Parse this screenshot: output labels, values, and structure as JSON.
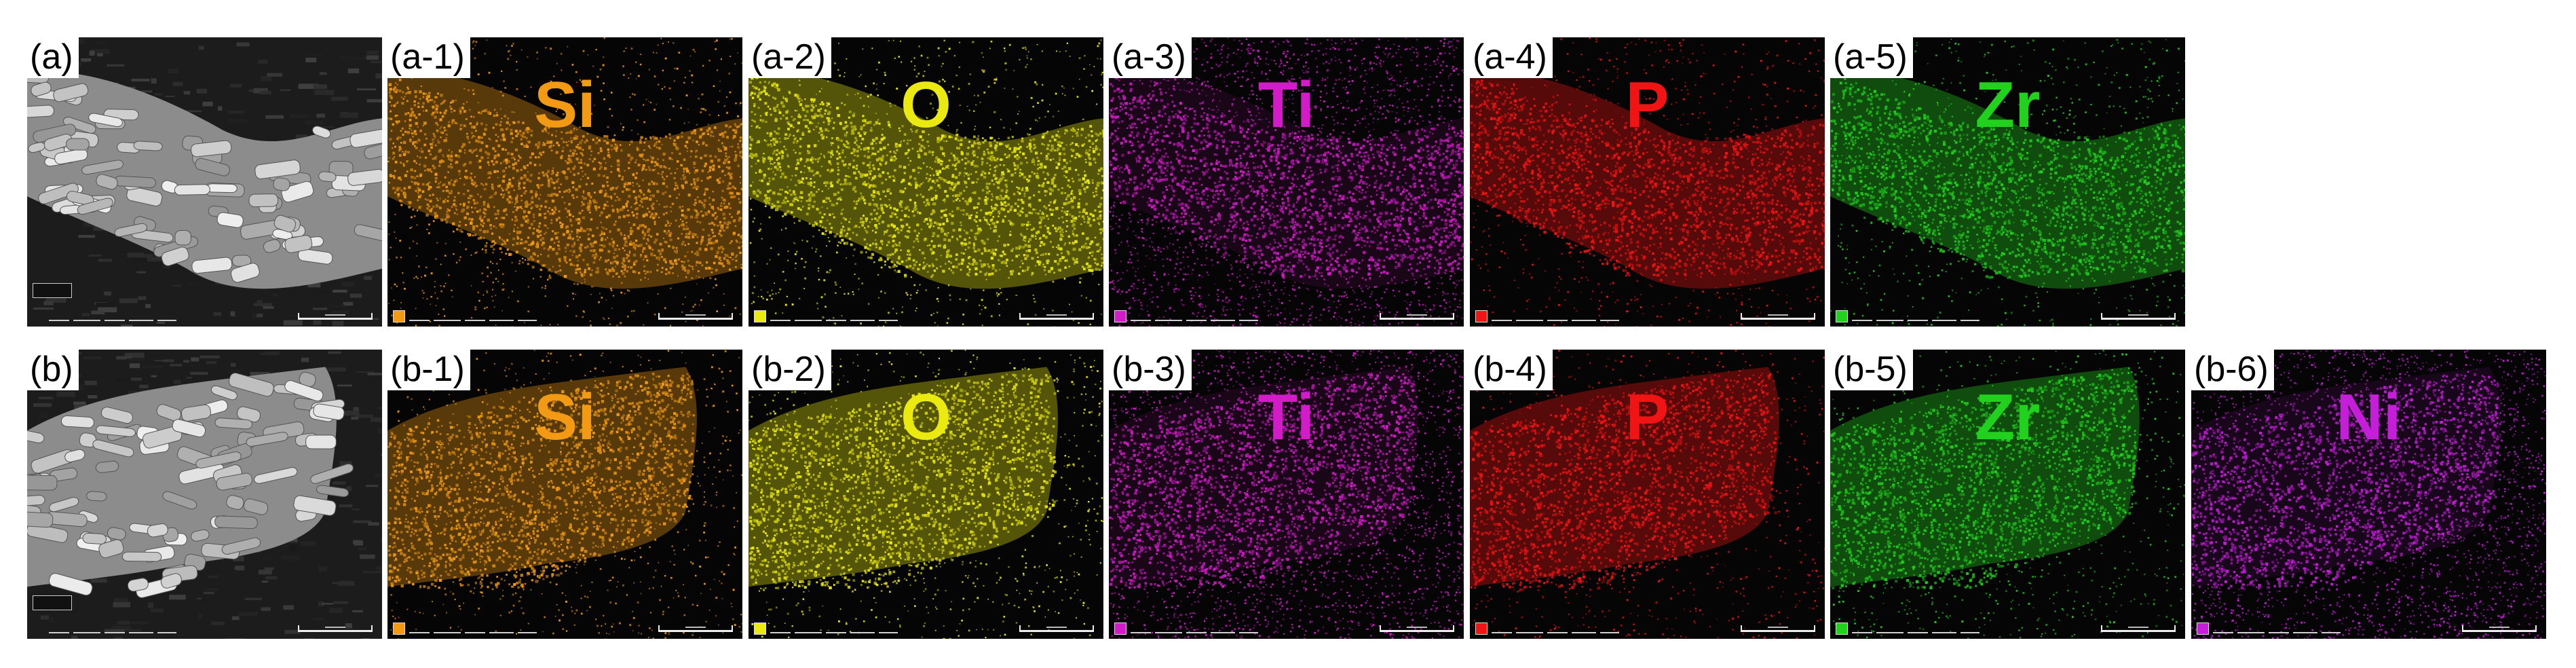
{
  "figure": {
    "rows": [
      {
        "panels": [
          {
            "label": "(a)",
            "element": "",
            "color": "#bdbdbd",
            "kind": "sem"
          },
          {
            "label": "(a-1)",
            "element": "Si",
            "color": "#f29a14",
            "kind": "map"
          },
          {
            "label": "(a-2)",
            "element": "O",
            "color": "#eaea10",
            "kind": "map"
          },
          {
            "label": "(a-3)",
            "element": "Ti",
            "color": "#d21cc8",
            "kind": "map"
          },
          {
            "label": "(a-4)",
            "element": "P",
            "color": "#f01414",
            "kind": "map"
          },
          {
            "label": "(a-5)",
            "element": "Zr",
            "color": "#22d01e",
            "kind": "map"
          }
        ]
      },
      {
        "panels": [
          {
            "label": "(b)",
            "element": "",
            "color": "#bdbdbd",
            "kind": "sem"
          },
          {
            "label": "(b-1)",
            "element": "Si",
            "color": "#f29a14",
            "kind": "map"
          },
          {
            "label": "(b-2)",
            "element": "O",
            "color": "#eaea10",
            "kind": "map"
          },
          {
            "label": "(b-3)",
            "element": "Ti",
            "color": "#d21cc8",
            "kind": "map"
          },
          {
            "label": "(b-4)",
            "element": "P",
            "color": "#f01414",
            "kind": "map"
          },
          {
            "label": "(b-5)",
            "element": "Zr",
            "color": "#22d01e",
            "kind": "map"
          },
          {
            "label": "(b-6)",
            "element": "Ni",
            "color": "#c41ed8",
            "kind": "map"
          }
        ]
      }
    ]
  }
}
